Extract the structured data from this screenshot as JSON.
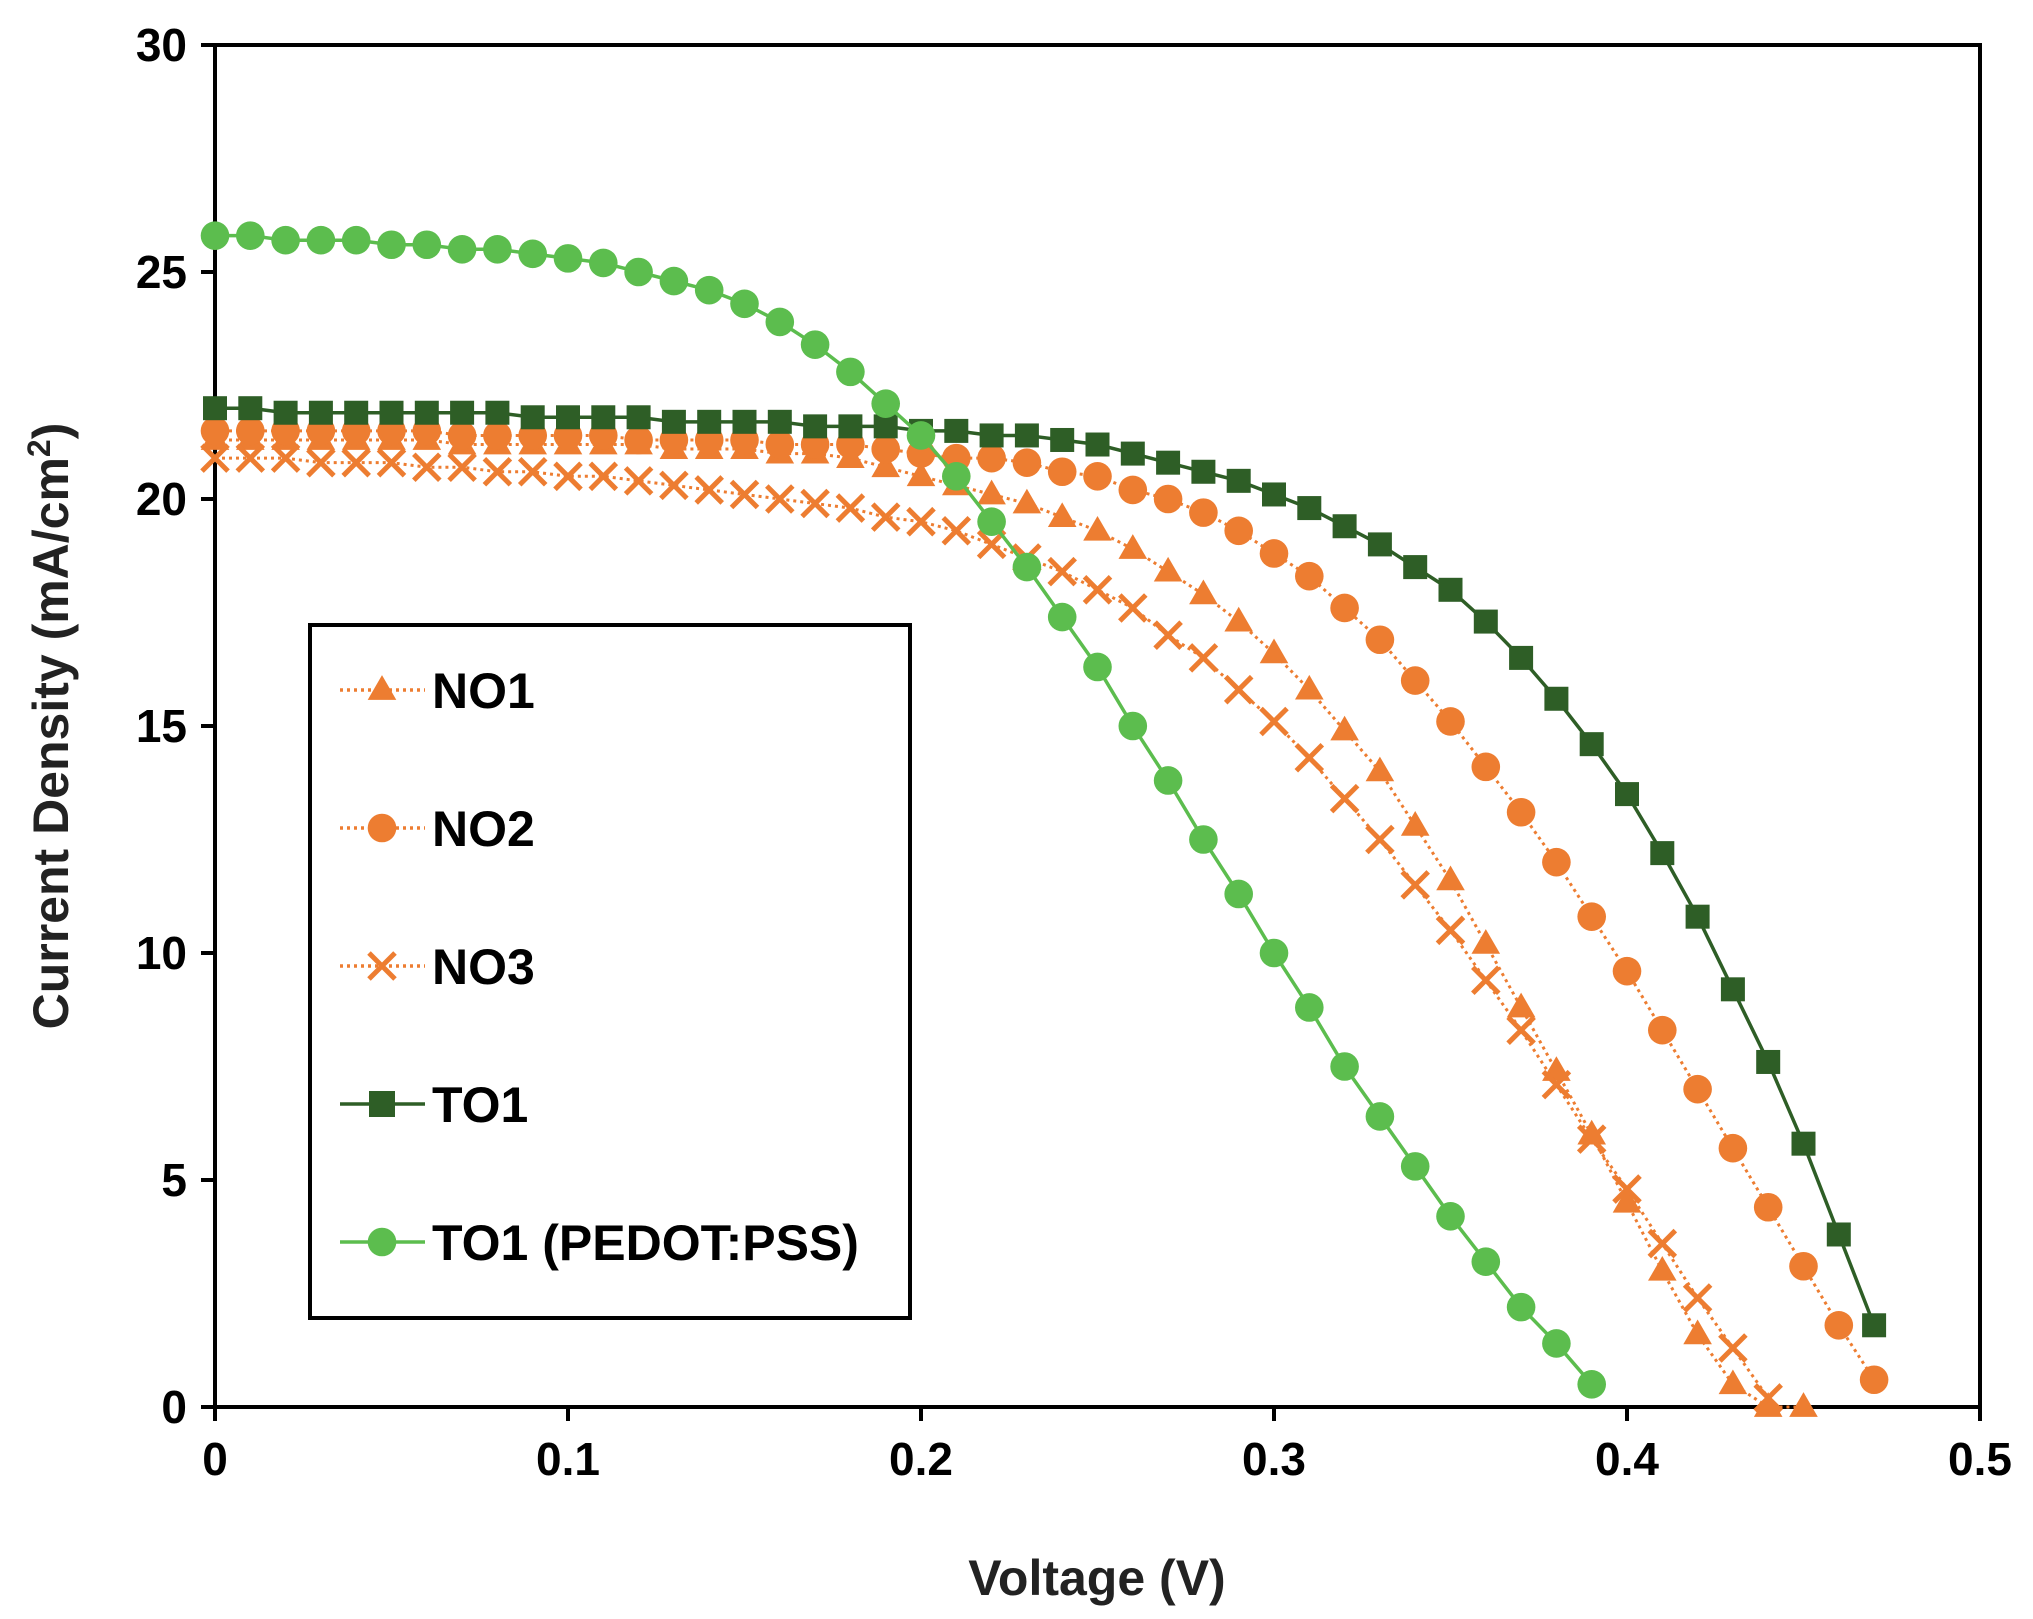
{
  "chart_data": {
    "type": "line",
    "title": "",
    "xlabel": "Voltage (V)",
    "ylabel_main": "Current Density (mA/cm",
    "ylabel_sup": "2",
    "ylabel_close": ")",
    "xlim": [
      0,
      0.5
    ],
    "ylim": [
      0,
      30
    ],
    "x_ticks": [
      0,
      0.1,
      0.2,
      0.3,
      0.4,
      0.5
    ],
    "x_tick_labels": [
      "0",
      "0.1",
      "0.2",
      "0.3",
      "0.4",
      "0.5"
    ],
    "y_ticks": [
      0,
      5,
      10,
      15,
      20,
      25,
      30
    ],
    "y_tick_labels": [
      "0",
      "5",
      "10",
      "15",
      "20",
      "25",
      "30"
    ],
    "grid": false,
    "legend_position": "left-middle",
    "series": [
      {
        "name": "NO1",
        "color": "#ED7D31",
        "marker": "triangle",
        "line_style": "dotted",
        "x": [
          0,
          0.01,
          0.02,
          0.03,
          0.04,
          0.05,
          0.06,
          0.07,
          0.08,
          0.09,
          0.1,
          0.11,
          0.12,
          0.13,
          0.14,
          0.15,
          0.16,
          0.17,
          0.18,
          0.19,
          0.2,
          0.21,
          0.22,
          0.23,
          0.24,
          0.25,
          0.26,
          0.27,
          0.28,
          0.29,
          0.3,
          0.31,
          0.32,
          0.33,
          0.34,
          0.35,
          0.36,
          0.37,
          0.38,
          0.39,
          0.4,
          0.41,
          0.42,
          0.43,
          0.44,
          0.45
        ],
        "y": [
          21.3,
          21.3,
          21.3,
          21.3,
          21.3,
          21.3,
          21.3,
          21.2,
          21.2,
          21.2,
          21.2,
          21.2,
          21.2,
          21.1,
          21.1,
          21.1,
          21.0,
          21.0,
          20.9,
          20.7,
          20.5,
          20.3,
          20.1,
          19.9,
          19.6,
          19.3,
          18.9,
          18.4,
          17.9,
          17.3,
          16.6,
          15.8,
          14.9,
          14.0,
          12.8,
          11.6,
          10.2,
          8.8,
          7.4,
          6.0,
          4.5,
          3.0,
          1.6,
          0.5,
          0.0,
          0.0
        ]
      },
      {
        "name": "NO2",
        "color": "#ED7D31",
        "marker": "circle",
        "line_style": "dotted",
        "x": [
          0,
          0.01,
          0.02,
          0.03,
          0.04,
          0.05,
          0.06,
          0.07,
          0.08,
          0.09,
          0.1,
          0.11,
          0.12,
          0.13,
          0.14,
          0.15,
          0.16,
          0.17,
          0.18,
          0.19,
          0.2,
          0.21,
          0.22,
          0.23,
          0.24,
          0.25,
          0.26,
          0.27,
          0.28,
          0.29,
          0.3,
          0.31,
          0.32,
          0.33,
          0.34,
          0.35,
          0.36,
          0.37,
          0.38,
          0.39,
          0.4,
          0.41,
          0.42,
          0.43,
          0.44,
          0.45,
          0.46,
          0.47
        ],
        "y": [
          21.5,
          21.5,
          21.5,
          21.5,
          21.5,
          21.5,
          21.5,
          21.4,
          21.4,
          21.4,
          21.4,
          21.4,
          21.3,
          21.3,
          21.3,
          21.3,
          21.2,
          21.2,
          21.2,
          21.1,
          21.0,
          20.9,
          20.9,
          20.8,
          20.6,
          20.5,
          20.2,
          20.0,
          19.7,
          19.3,
          18.8,
          18.3,
          17.6,
          16.9,
          16.0,
          15.1,
          14.1,
          13.1,
          12.0,
          10.8,
          9.6,
          8.3,
          7.0,
          5.7,
          4.4,
          3.1,
          1.8,
          0.6
        ]
      },
      {
        "name": "NO3",
        "color": "#ED7D31",
        "marker": "x",
        "line_style": "dotted",
        "x": [
          0,
          0.01,
          0.02,
          0.03,
          0.04,
          0.05,
          0.06,
          0.07,
          0.08,
          0.09,
          0.1,
          0.11,
          0.12,
          0.13,
          0.14,
          0.15,
          0.16,
          0.17,
          0.18,
          0.19,
          0.2,
          0.21,
          0.22,
          0.23,
          0.24,
          0.25,
          0.26,
          0.27,
          0.28,
          0.29,
          0.3,
          0.31,
          0.32,
          0.33,
          0.34,
          0.35,
          0.36,
          0.37,
          0.38,
          0.39,
          0.4,
          0.41,
          0.42,
          0.43,
          0.44
        ],
        "y": [
          20.9,
          20.9,
          20.9,
          20.8,
          20.8,
          20.8,
          20.7,
          20.7,
          20.6,
          20.6,
          20.5,
          20.5,
          20.4,
          20.3,
          20.2,
          20.1,
          20.0,
          19.9,
          19.8,
          19.6,
          19.5,
          19.3,
          19.0,
          18.7,
          18.4,
          18.0,
          17.6,
          17.0,
          16.5,
          15.8,
          15.1,
          14.3,
          13.4,
          12.5,
          11.5,
          10.5,
          9.4,
          8.3,
          7.1,
          5.9,
          4.8,
          3.6,
          2.4,
          1.3,
          0.2
        ]
      },
      {
        "name": "TO1",
        "color": "#2E5E26",
        "marker": "square",
        "line_style": "solid",
        "x": [
          0,
          0.01,
          0.02,
          0.03,
          0.04,
          0.05,
          0.06,
          0.07,
          0.08,
          0.09,
          0.1,
          0.11,
          0.12,
          0.13,
          0.14,
          0.15,
          0.16,
          0.17,
          0.18,
          0.19,
          0.2,
          0.21,
          0.22,
          0.23,
          0.24,
          0.25,
          0.26,
          0.27,
          0.28,
          0.29,
          0.3,
          0.31,
          0.32,
          0.33,
          0.34,
          0.35,
          0.36,
          0.37,
          0.38,
          0.39,
          0.4,
          0.41,
          0.42,
          0.43,
          0.44,
          0.45,
          0.46,
          0.47
        ],
        "y": [
          22.0,
          22.0,
          21.9,
          21.9,
          21.9,
          21.9,
          21.9,
          21.9,
          21.9,
          21.8,
          21.8,
          21.8,
          21.8,
          21.7,
          21.7,
          21.7,
          21.7,
          21.6,
          21.6,
          21.6,
          21.5,
          21.5,
          21.4,
          21.4,
          21.3,
          21.2,
          21.0,
          20.8,
          20.6,
          20.4,
          20.1,
          19.8,
          19.4,
          19.0,
          18.5,
          18.0,
          17.3,
          16.5,
          15.6,
          14.6,
          13.5,
          12.2,
          10.8,
          9.2,
          7.6,
          5.8,
          3.8,
          1.8
        ]
      },
      {
        "name": "TO1 (PEDOT:PSS)",
        "color": "#5CBD4E",
        "marker": "circle",
        "line_style": "solid",
        "x": [
          0,
          0.01,
          0.02,
          0.03,
          0.04,
          0.05,
          0.06,
          0.07,
          0.08,
          0.09,
          0.1,
          0.11,
          0.12,
          0.13,
          0.14,
          0.15,
          0.16,
          0.17,
          0.18,
          0.19,
          0.2,
          0.21,
          0.22,
          0.23,
          0.24,
          0.25,
          0.26,
          0.27,
          0.28,
          0.29,
          0.3,
          0.31,
          0.32,
          0.33,
          0.34,
          0.35,
          0.36,
          0.37,
          0.38,
          0.39
        ],
        "y": [
          25.8,
          25.8,
          25.7,
          25.7,
          25.7,
          25.6,
          25.6,
          25.5,
          25.5,
          25.4,
          25.3,
          25.2,
          25.0,
          24.8,
          24.6,
          24.3,
          23.9,
          23.4,
          22.8,
          22.1,
          21.4,
          20.5,
          19.5,
          18.5,
          17.4,
          16.3,
          15.0,
          13.8,
          12.5,
          11.3,
          10.0,
          8.8,
          7.5,
          6.4,
          5.3,
          4.2,
          3.2,
          2.2,
          1.4,
          0.5
        ]
      }
    ]
  }
}
